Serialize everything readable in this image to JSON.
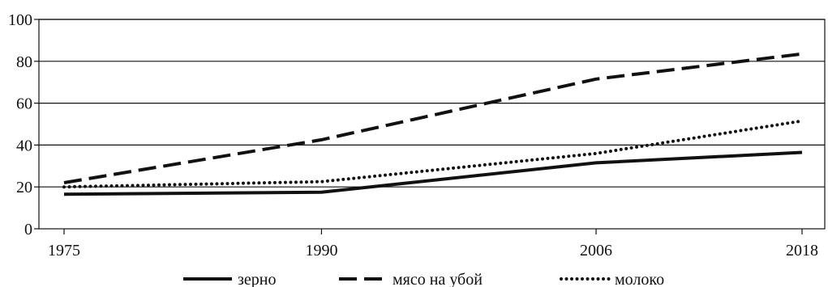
{
  "chart_data": {
    "type": "line",
    "x": [
      1975,
      1990,
      2006,
      2018
    ],
    "x_tick_labels": [
      "1975",
      "1990",
      "2006",
      "2018"
    ],
    "ylim": [
      0,
      100
    ],
    "y_ticks": [
      0,
      20,
      40,
      60,
      80,
      100
    ],
    "y_tick_labels": [
      "0",
      "20",
      "40",
      "60",
      "80",
      "100"
    ],
    "grid": "horizontal",
    "legend_position": "bottom",
    "series": [
      {
        "name": "зерно",
        "style": "solid",
        "values": [
          16.5,
          17.5,
          31.5,
          36.5
        ]
      },
      {
        "name": "мясо на убой",
        "style": "dashed",
        "values": [
          22,
          42.5,
          71.5,
          83.5
        ]
      },
      {
        "name": "молоко",
        "style": "dotted",
        "values": [
          20,
          22.5,
          36,
          51.5
        ]
      }
    ],
    "colors": {
      "line": "#111111",
      "grid": "#111111",
      "background": "#ffffff"
    }
  }
}
